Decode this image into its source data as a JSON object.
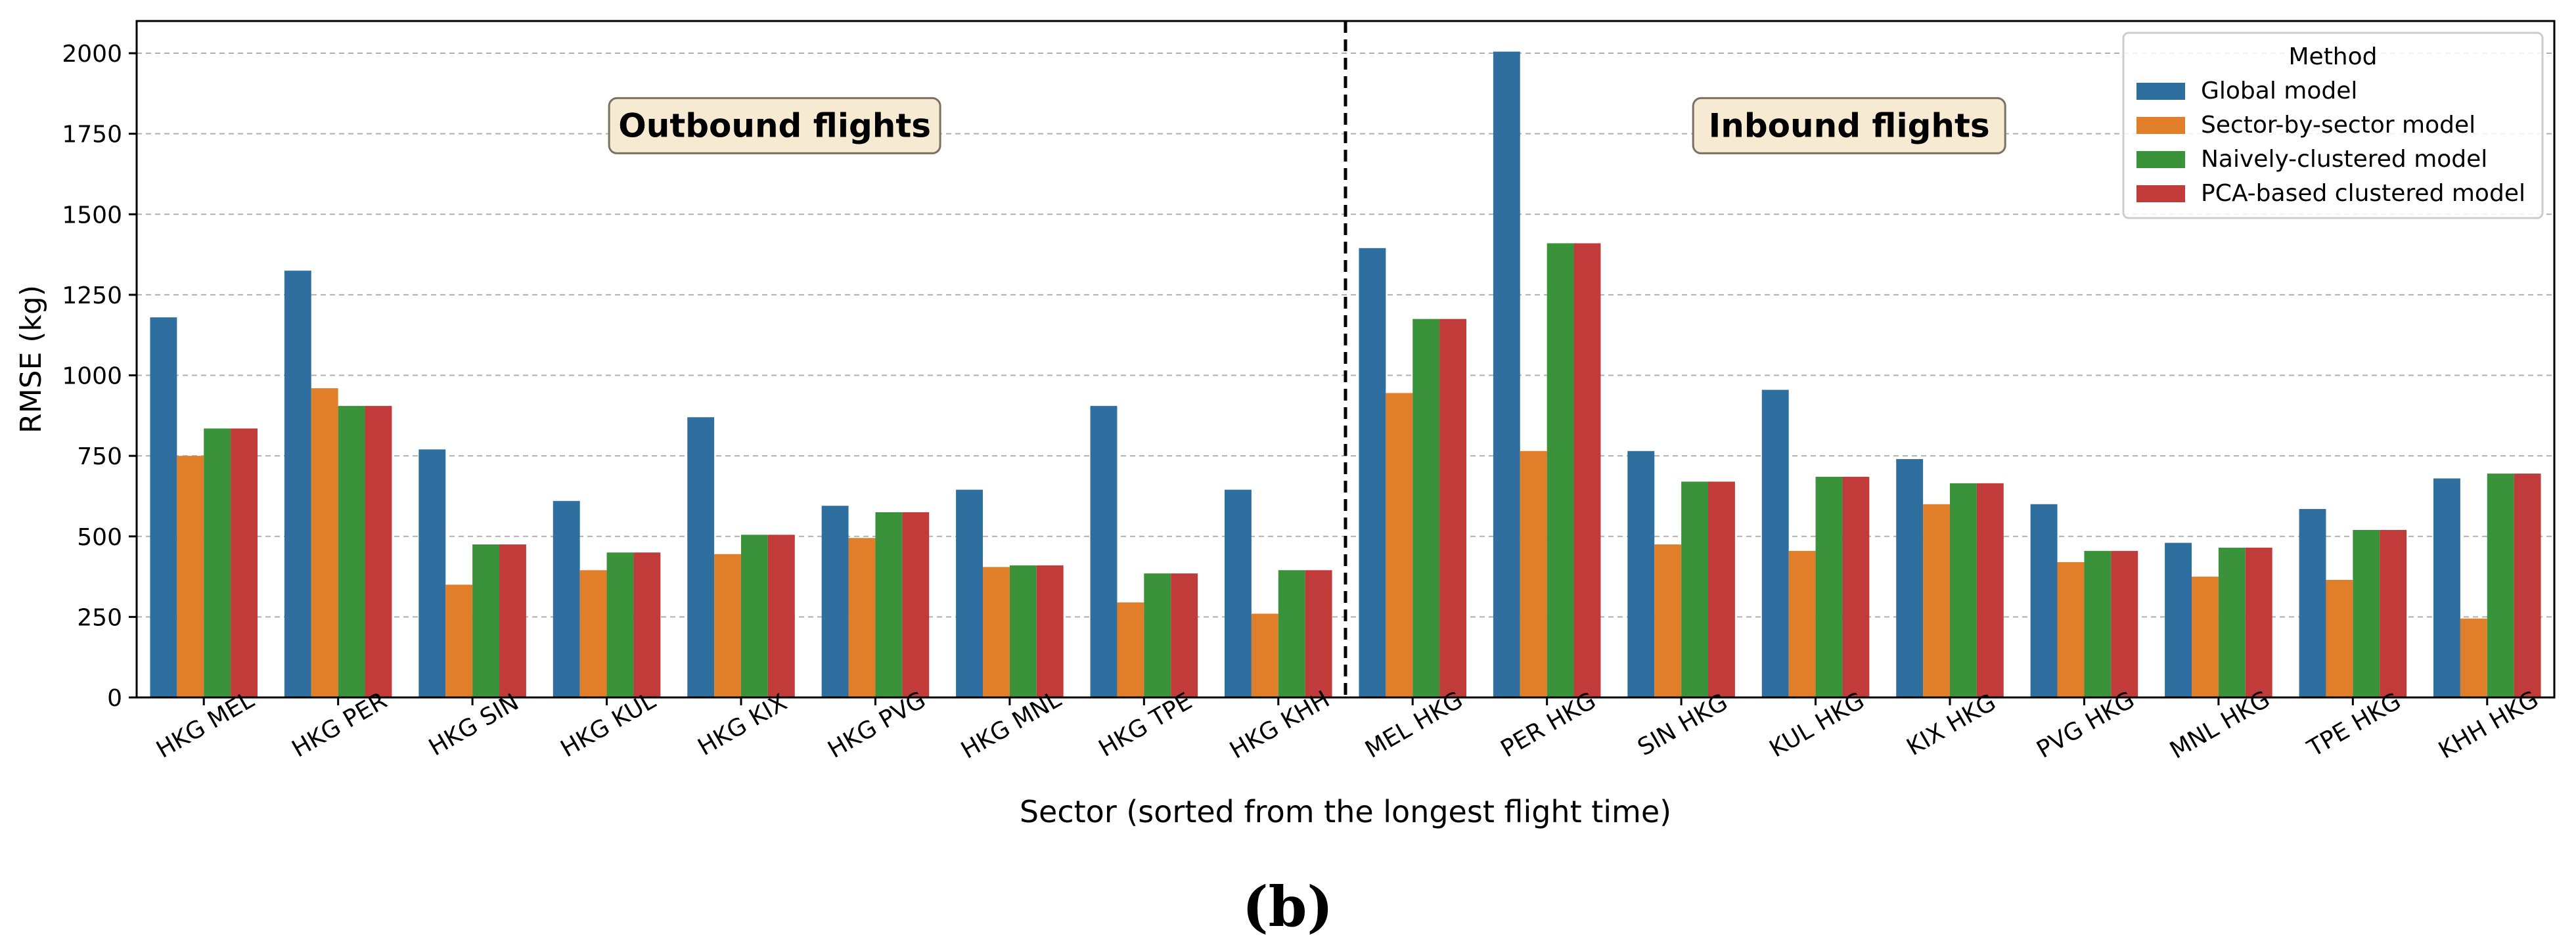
{
  "chart_data": {
    "type": "bar",
    "title": "",
    "xlabel": "Sector (sorted from the longest flight time)",
    "ylabel": "RMSE (kg)",
    "ylim": [
      0,
      2100
    ],
    "yticks": [
      0,
      250,
      500,
      750,
      1000,
      1250,
      1500,
      1750,
      2000
    ],
    "grid": "y",
    "legend_title": "Method",
    "legend_position": "top-right",
    "categories": [
      "HKG MEL",
      "HKG PER",
      "HKG SIN",
      "HKG KUL",
      "HKG KIX",
      "HKG PVG",
      "HKG MNL",
      "HKG TPE",
      "HKG KHH",
      "MEL HKG",
      "PER HKG",
      "SIN HKG",
      "KUL HKG",
      "KIX HKG",
      "PVG HKG",
      "MNL HKG",
      "TPE HKG",
      "KHH HKG"
    ],
    "series": [
      {
        "name": "Global model",
        "color": "#2f6f9f",
        "values": [
          1180,
          1325,
          770,
          610,
          870,
          595,
          645,
          905,
          645,
          1395,
          2005,
          765,
          955,
          740,
          600,
          480,
          585,
          680
        ]
      },
      {
        "name": "Sector-by-sector model",
        "color": "#e07e2a",
        "values": [
          750,
          960,
          350,
          395,
          445,
          495,
          405,
          295,
          260,
          945,
          765,
          475,
          455,
          600,
          420,
          375,
          365,
          245
        ]
      },
      {
        "name": "Naively-clustered model",
        "color": "#3a923a",
        "values": [
          835,
          905,
          475,
          450,
          505,
          575,
          410,
          385,
          395,
          1175,
          1410,
          670,
          685,
          665,
          455,
          465,
          520,
          695
        ]
      },
      {
        "name": "PCA-based clustered model",
        "color": "#c03b3a",
        "values": [
          835,
          905,
          475,
          450,
          505,
          575,
          410,
          385,
          395,
          1175,
          1410,
          670,
          685,
          665,
          455,
          465,
          520,
          695
        ]
      }
    ],
    "divider_after_index": 8,
    "annotations": [
      {
        "text": "Outbound flights",
        "at_category_index": 4.75,
        "y": 1775
      },
      {
        "text": "Inbound flights",
        "at_category_index": 12.75,
        "y": 1775
      }
    ],
    "panel_label": "(b)"
  }
}
